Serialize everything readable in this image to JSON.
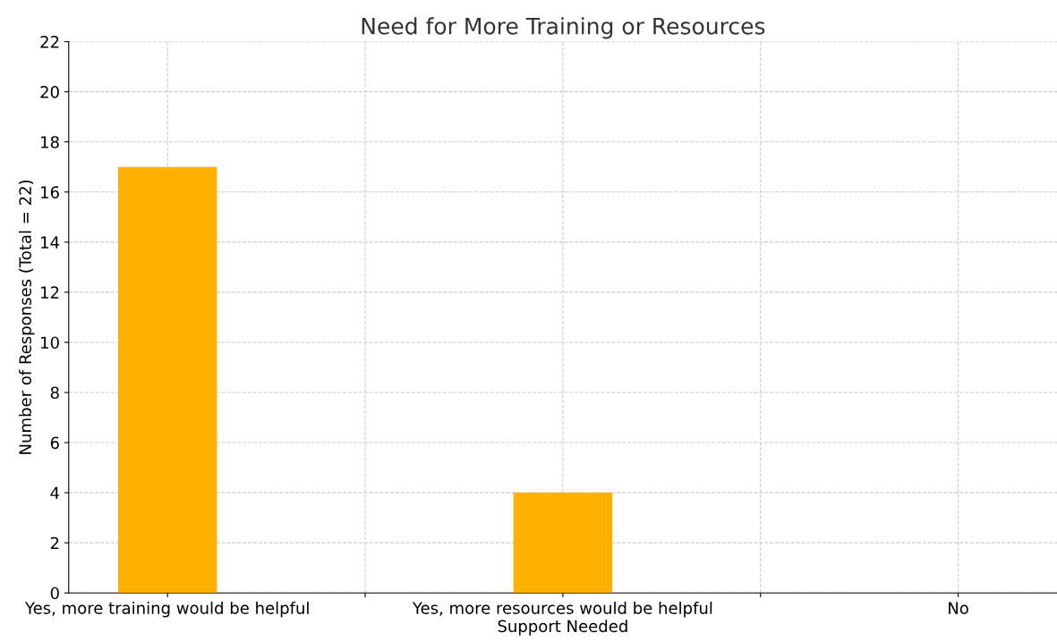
{
  "chart_data": {
    "type": "bar",
    "title": "Need for More Training or Resources",
    "xlabel": "Support Needed",
    "ylabel": "Number of Responses (Total = 22)",
    "categories": [
      "Yes, more training would be helpful",
      null,
      "Yes, more resources would be helpful",
      null,
      "No"
    ],
    "values": [
      17,
      null,
      4,
      null,
      0
    ],
    "color": "#ffb000",
    "ylim": [
      0,
      22
    ],
    "yticks": [
      0,
      2,
      4,
      6,
      8,
      10,
      12,
      14,
      16,
      18,
      20,
      22
    ],
    "grid": true,
    "legend": false
  }
}
